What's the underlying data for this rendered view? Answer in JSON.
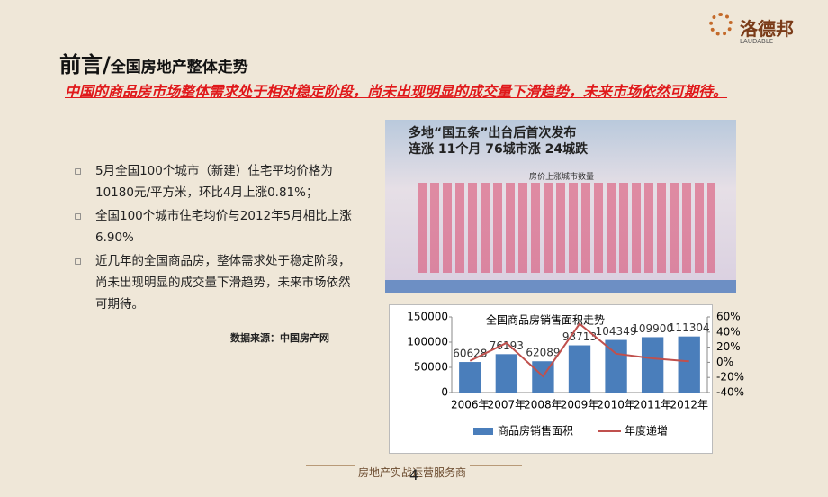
{
  "slide": {
    "title_main": "前言/",
    "title_sub": "全国房地产整体走势",
    "highlight": "中国的商品房市场整体需求处于相对稳定阶段，尚未出现明显的成交量下滑趋势，未来市场依然可期待。",
    "bullets": [
      "5月全国100个城市（新建）住宅平均价格为10180元/平方米，环比4月上涨0.81%；",
      "全国100个城市住宅均价与2012年5月相比上涨6.90%",
      "近几年的全国商品房，整体需求处于稳定阶段，尚未出现明显的成交量下滑趋势，未来市场依然可期待。"
    ],
    "source": "数据来源：中国房产网",
    "logo": "洛德邦",
    "logo_en": "LAUDABLE",
    "image_headline": [
      "多地“国五条”出台后首次发布",
      "连涨 11个月  76城市涨  24城跌"
    ],
    "image_caption": "房价上涨城市数量",
    "footer": "房地产实战运营服务商",
    "page": "4"
  },
  "chart_data": {
    "type": "bar-line",
    "title": "全国商品房销售面积走势",
    "categories": [
      "2006年",
      "2007年",
      "2008年",
      "2009年",
      "2010年",
      "2011年",
      "2012年"
    ],
    "series": [
      {
        "name": "商品房销售面积",
        "color": "#4a7ebb",
        "values": [
          60628,
          76193,
          62089,
          93713,
          104349,
          109900,
          111304
        ]
      },
      {
        "name": "年度递增",
        "color": "#c0504d",
        "axis": "y2",
        "values": [
          2,
          25.7,
          -18.5,
          50.9,
          11.4,
          5.3,
          1.3
        ]
      }
    ],
    "ylim": [
      0,
      150000
    ],
    "yticks": [
      0,
      50000,
      100000,
      150000
    ],
    "y2lim": [
      -40,
      60
    ],
    "y2ticks": [
      {
        "value": -40,
        "label": "-40%"
      },
      {
        "value": -20,
        "label": "-20%"
      },
      {
        "value": 0,
        "label": "0%"
      },
      {
        "value": 20,
        "label": "20%"
      },
      {
        "value": 40,
        "label": "40%"
      },
      {
        "value": 60,
        "label": "60%"
      }
    ],
    "legend": "bottom"
  }
}
